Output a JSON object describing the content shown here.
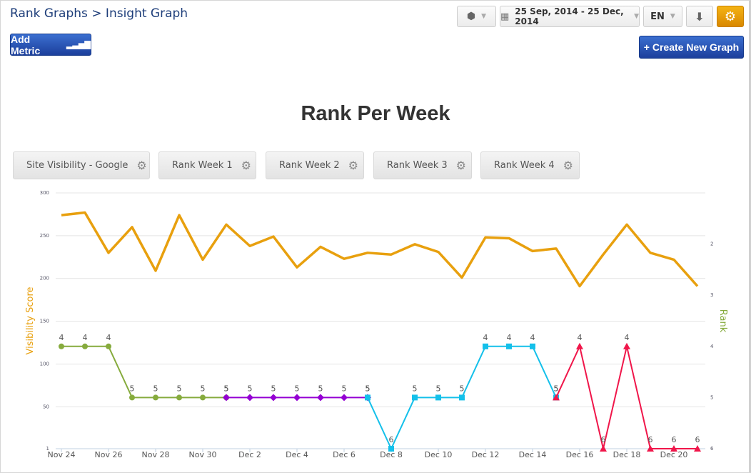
{
  "header": {
    "breadcrumb": "Rank Graphs > Insight Graph",
    "add_metric": "Add Metric",
    "create_graph": "+ Create New Graph",
    "date_range": "25 Sep, 2014 - 25 Dec, 2014",
    "language": "EN"
  },
  "colors": {
    "orange": "#e8a00e",
    "green": "#86ab3d",
    "purple": "#9400d3",
    "cyan": "#14c0ea",
    "red": "#f0164a"
  },
  "legend": [
    {
      "label": "Site Visibility - Google",
      "color": "#e8a00e"
    },
    {
      "label": "Rank Week 1",
      "color": "#86ab3d"
    },
    {
      "label": "Rank Week 2",
      "color": "#9400d3"
    },
    {
      "label": "Rank Week 3",
      "color": "#14c0ea"
    },
    {
      "label": "Rank Week 4",
      "color": "#f0164a"
    }
  ],
  "chart_data": {
    "type": "line",
    "title": "Rank Per Week",
    "ylabel_left": "Visibility Score",
    "ylabel_right": "Rank",
    "left_ticks": [
      "300",
      "250",
      "200",
      "150",
      "100",
      "50",
      "1"
    ],
    "left_range": [
      1,
      300
    ],
    "right_ticks": [
      "2",
      "3",
      "4",
      "5",
      "6"
    ],
    "right_range": [
      1,
      6
    ],
    "x_tick_labels": [
      "Nov 24",
      "Nov 26",
      "Nov 28",
      "Nov 30",
      "Dec 2",
      "Dec 4",
      "Dec 6",
      "Dec 8",
      "Dec 10",
      "Dec 12",
      "Dec 14",
      "Dec 16",
      "Dec 18",
      "Dec 20"
    ],
    "x_count": 28,
    "visibility": [
      274,
      277,
      230,
      260,
      209,
      274,
      222,
      263,
      238,
      249,
      213,
      237,
      223,
      230,
      228,
      240,
      231,
      201,
      248,
      247,
      232,
      235,
      191,
      228,
      263,
      230,
      222,
      191
    ],
    "rank_series": [
      {
        "name": "Rank Week 1",
        "color": "#86ab3d",
        "marker": "circle",
        "start": 0,
        "values": [
          4,
          4,
          4,
          5,
          5,
          5,
          5,
          5
        ]
      },
      {
        "name": "Rank Week 2",
        "color": "#9400d3",
        "marker": "diamond",
        "start": 7,
        "values": [
          5,
          5,
          5,
          5,
          5,
          5,
          5
        ]
      },
      {
        "name": "Rank Week 3",
        "color": "#14c0ea",
        "marker": "square",
        "start": 13,
        "values": [
          5,
          6,
          5,
          5,
          5,
          4,
          4,
          4,
          5
        ]
      },
      {
        "name": "Rank Week 4",
        "color": "#f0164a",
        "marker": "triangle",
        "start": 21,
        "values": [
          5,
          4,
          6,
          4,
          6,
          6,
          6
        ]
      }
    ]
  }
}
